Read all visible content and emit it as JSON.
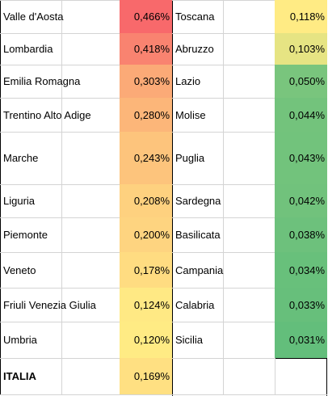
{
  "left": [
    {
      "region": "Valle d'Aosta",
      "value": "0,466%",
      "color": "#F8696B"
    },
    {
      "region": "Lombardia",
      "value": "0,418%",
      "color": "#F98370"
    },
    {
      "region": "Emilia Romagna",
      "value": "0,303%",
      "color": "#FBAA77"
    },
    {
      "region": "Trentino Alto Adige",
      "value": "0,280%",
      "color": "#FCB679"
    },
    {
      "region": "Marche",
      "value": "0,243%",
      "color": "#FDC47C"
    },
    {
      "region": "Liguria",
      "value": "0,208%",
      "color": "#FED17F"
    },
    {
      "region": "Piemonte",
      "value": "0,200%",
      "color": "#FED480"
    },
    {
      "region": "Veneto",
      "value": "0,178%",
      "color": "#FFDC81"
    },
    {
      "region": "Friuli Venezia Giulia",
      "value": "0,124%",
      "color": "#FFE984"
    },
    {
      "region": "Umbria",
      "value": "0,120%",
      "color": "#FFEB84"
    }
  ],
  "right": [
    {
      "region": "Toscana",
      "value": "0,118%",
      "color": "#FFEB84"
    },
    {
      "region": "Abruzzo",
      "value": "0,103%",
      "color": "#E6E483"
    },
    {
      "region": "Lazio",
      "value": "0,050%",
      "color": "#79C57D"
    },
    {
      "region": "Molise",
      "value": "0,044%",
      "color": "#73C37C"
    },
    {
      "region": "Puglia",
      "value": "0,043%",
      "color": "#72C37C"
    },
    {
      "region": "Sardegna",
      "value": "0,042%",
      "color": "#71C27C"
    },
    {
      "region": "Basilicata",
      "value": "0,038%",
      "color": "#6DC17C"
    },
    {
      "region": "Campania",
      "value": "0,034%",
      "color": "#68C07B"
    },
    {
      "region": "Calabria",
      "value": "0,033%",
      "color": "#67BF7B"
    },
    {
      "region": "Sicilia",
      "value": "0,031%",
      "color": "#63BE7B"
    }
  ],
  "total": {
    "region": "ITALIA",
    "value": "0,169%",
    "color": "#FFE082"
  }
}
